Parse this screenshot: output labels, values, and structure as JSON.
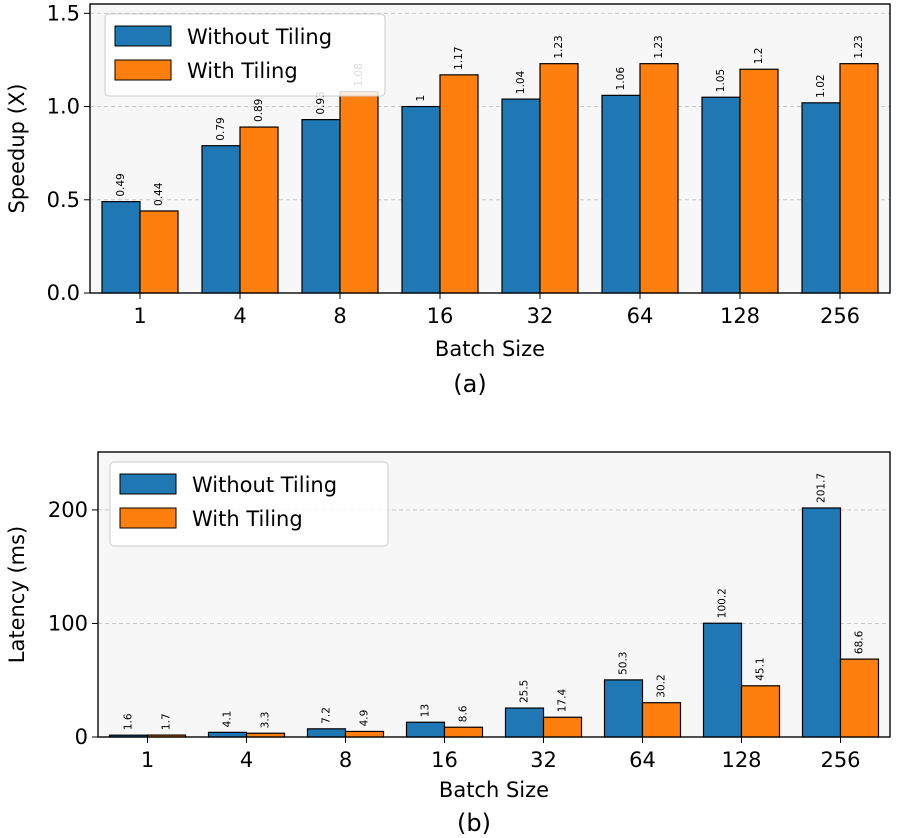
{
  "chart_data": [
    {
      "type": "bar",
      "panel_label": "(a)",
      "categories": [
        "1",
        "4",
        "8",
        "16",
        "32",
        "64",
        "128",
        "256"
      ],
      "series": [
        {
          "name": "Without Tiling",
          "color": "#1f77b4",
          "values": [
            0.49,
            0.79,
            0.93,
            1.0,
            1.04,
            1.06,
            1.05,
            1.02
          ],
          "labels": [
            "0.49",
            "0.79",
            "0.93",
            "1",
            "1.04",
            "1.06",
            "1.05",
            "1.02"
          ]
        },
        {
          "name": "With Tiling",
          "color": "#ff7f0e",
          "values": [
            0.44,
            0.89,
            1.08,
            1.17,
            1.23,
            1.23,
            1.2,
            1.23
          ],
          "labels": [
            "0.44",
            "0.89",
            "1.08",
            "1.17",
            "1.23",
            "1.23",
            "1.2",
            "1.23"
          ]
        }
      ],
      "xlabel": "Batch Size",
      "ylabel": "Speedup (X)",
      "ylim": [
        0,
        1.55
      ],
      "yticks": [
        0,
        0.5,
        1.0,
        1.5
      ],
      "ytick_labels": [
        "0.0",
        "0.5",
        "1.0",
        "1.5"
      ],
      "grid": "y dashed",
      "legend_position": "top-left"
    },
    {
      "type": "bar",
      "panel_label": "(b)",
      "categories": [
        "1",
        "4",
        "8",
        "16",
        "32",
        "64",
        "128",
        "256"
      ],
      "series": [
        {
          "name": "Without Tiling",
          "color": "#1f77b4",
          "values": [
            1.6,
            4.1,
            7.2,
            13,
            25.5,
            50.3,
            100.2,
            201.7
          ],
          "labels": [
            "1.6",
            "4.1",
            "7.2",
            "13",
            "25.5",
            "50.3",
            "100.2",
            "201.7"
          ]
        },
        {
          "name": "With Tiling",
          "color": "#ff7f0e",
          "values": [
            1.7,
            3.3,
            4.9,
            8.6,
            17.4,
            30.2,
            45.1,
            68.6
          ],
          "labels": [
            "1.7",
            "3.3",
            "4.9",
            "8.6",
            "17.4",
            "30.2",
            "45.1",
            "68.6"
          ]
        }
      ],
      "xlabel": "Batch Size",
      "ylabel": "Latency (ms)",
      "ylim": [
        0,
        251
      ],
      "yticks": [
        0,
        100,
        200
      ],
      "ytick_labels": [
        "0",
        "100",
        "200"
      ],
      "grid": "y dashed",
      "legend_position": "top-left"
    }
  ]
}
